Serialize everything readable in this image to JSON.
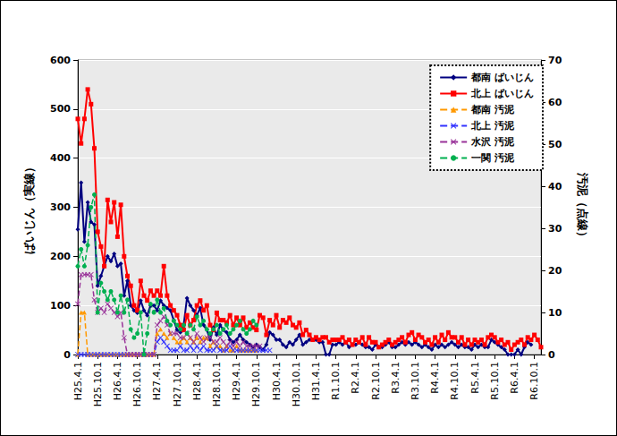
{
  "chart_data": {
    "type": "line",
    "y_label": "ばいじん（実線）",
    "y2_label": "汚泥（点線）",
    "categories": [
      "H25.4.1",
      null,
      null,
      null,
      null,
      null,
      "H25.10.1",
      null,
      null,
      null,
      null,
      null,
      "H26.4.1",
      null,
      null,
      null,
      null,
      null,
      "H26.10.1",
      null,
      null,
      null,
      null,
      null,
      "H27.4.1",
      null,
      null,
      null,
      null,
      null,
      "H27.10.1",
      null,
      null,
      null,
      null,
      null,
      "H28.4.1",
      null,
      null,
      null,
      null,
      null,
      "H28.10.1",
      null,
      null,
      null,
      null,
      null,
      "H29.4.1",
      null,
      null,
      null,
      null,
      null,
      "H29.10.1",
      null,
      null,
      null,
      null,
      null,
      "H30.4.1",
      null,
      null,
      null,
      null,
      null,
      "H30.10.1",
      null,
      null,
      null,
      null,
      null,
      "H31.4.1",
      null,
      null,
      null,
      null,
      null,
      "R1.10.1",
      null,
      null,
      null,
      null,
      null,
      "R2.4.1",
      null,
      null,
      null,
      null,
      null,
      "R2.10.1",
      null,
      null,
      null,
      null,
      null,
      "R3.4.1",
      null,
      null,
      null,
      null,
      null,
      "R3.10.1",
      null,
      null,
      null,
      null,
      null,
      "R4.4.1",
      null,
      null,
      null,
      null,
      null,
      "R4.10.1",
      null,
      null,
      null,
      null,
      null,
      "R5.4.1",
      null,
      null,
      null,
      null,
      null,
      "R5.10.1",
      null,
      null,
      null,
      null,
      null,
      "R6.4.1",
      null,
      null,
      null,
      null,
      null,
      "R6.10.1",
      null,
      null
    ],
    "ylim": [
      0,
      600
    ],
    "yticks": [
      0,
      100,
      200,
      300,
      400,
      500,
      600
    ],
    "y2lim": [
      0,
      70
    ],
    "y2ticks": [
      0,
      10,
      20,
      30,
      40,
      50,
      60,
      70
    ],
    "grid": true,
    "legend": "upper right",
    "series": [
      {
        "name": "都南 ばいじん",
        "color": "#000080",
        "marker": "diamond",
        "line_style": "solid",
        "axis": "y",
        "values": [
          255,
          350,
          230,
          310,
          270,
          265,
          140,
          160,
          180,
          200,
          190,
          205,
          180,
          185,
          120,
          150,
          100,
          90,
          85,
          110,
          90,
          80,
          100,
          100,
          90,
          110,
          100,
          95,
          90,
          70,
          50,
          45,
          60,
          115,
          100,
          90,
          80,
          95,
          60,
          50,
          30,
          55,
          40,
          60,
          50,
          45,
          30,
          25,
          30,
          40,
          30,
          25,
          20,
          15,
          20,
          15,
          10,
          20,
          45,
          40,
          30,
          30,
          20,
          15,
          25,
          20,
          30,
          40,
          20,
          25,
          30,
          30,
          30,
          25,
          25,
          0,
          0,
          20,
          20,
          25,
          20,
          25,
          15,
          20,
          20,
          25,
          20,
          15,
          15,
          10,
          20,
          15,
          15,
          20,
          25,
          15,
          15,
          20,
          25,
          20,
          25,
          20,
          25,
          20,
          15,
          20,
          15,
          10,
          20,
          15,
          20,
          15,
          20,
          25,
          20,
          15,
          20,
          15,
          15,
          10,
          20,
          15,
          20,
          15,
          15,
          30,
          25,
          20,
          15,
          10,
          0,
          0,
          0,
          10,
          0,
          15,
          25,
          20,
          null,
          null,
          null
        ]
      },
      {
        "name": "北上 ばいじん",
        "color": "#ff0000",
        "marker": "square",
        "line_style": "solid",
        "axis": "y",
        "values": [
          480,
          430,
          480,
          540,
          510,
          420,
          250,
          220,
          180,
          315,
          270,
          310,
          240,
          305,
          200,
          160,
          140,
          100,
          90,
          150,
          120,
          110,
          130,
          120,
          130,
          120,
          180,
          120,
          100,
          90,
          80,
          60,
          50,
          80,
          60,
          70,
          100,
          110,
          90,
          100,
          60,
          50,
          85,
          70,
          70,
          65,
          80,
          60,
          75,
          60,
          75,
          55,
          65,
          55,
          50,
          80,
          75,
          40,
          70,
          60,
          80,
          55,
          70,
          65,
          75,
          60,
          55,
          65,
          40,
          50,
          40,
          30,
          35,
          30,
          35,
          35,
          25,
          30,
          30,
          30,
          35,
          25,
          30,
          20,
          30,
          25,
          35,
          20,
          35,
          25,
          25,
          15,
          20,
          25,
          30,
          20,
          25,
          30,
          35,
          25,
          40,
          45,
          30,
          40,
          35,
          25,
          30,
          20,
          35,
          25,
          40,
          30,
          45,
          35,
          35,
          25,
          35,
          20,
          30,
          20,
          30,
          25,
          30,
          20,
          35,
          40,
          35,
          25,
          30,
          20,
          25,
          10,
          20,
          25,
          30,
          20,
          35,
          30,
          40,
          30,
          15
        ]
      },
      {
        "name": "都南 汚泥",
        "color": "#ff9900",
        "marker": "triangle",
        "line_style": "dashed",
        "axis": "y2",
        "values": [
          0,
          10,
          10,
          0,
          0,
          0,
          0,
          0,
          0,
          0,
          0,
          0,
          0,
          0,
          0,
          0,
          0,
          0,
          0,
          0,
          0,
          0,
          0,
          0,
          5,
          6,
          5,
          4,
          5,
          4,
          3,
          3,
          4,
          3,
          4,
          3,
          4,
          3,
          4,
          4,
          2,
          3,
          2,
          2,
          1,
          2,
          1,
          1,
          2,
          1,
          1,
          1,
          1,
          1,
          1,
          null,
          null,
          null,
          null,
          null,
          null,
          null,
          null,
          null,
          null,
          null,
          null,
          null,
          null,
          null,
          null,
          null,
          null,
          null,
          null,
          null,
          null,
          null,
          null,
          null,
          null,
          null,
          null,
          null,
          null,
          null,
          null,
          null,
          null,
          null,
          null,
          null,
          null,
          null,
          null,
          null,
          null,
          null,
          null,
          null,
          null,
          null,
          null,
          null,
          null,
          null,
          null,
          null,
          null,
          null,
          null,
          null,
          null,
          null,
          null,
          null,
          null,
          null,
          null,
          null,
          null,
          null,
          null,
          null,
          null,
          null,
          null,
          null,
          null,
          null,
          null,
          null,
          null,
          null,
          null,
          null,
          null,
          null,
          null,
          null,
          null
        ]
      },
      {
        "name": "北上 汚泥",
        "color": "#3333ff",
        "marker": "x",
        "line_style": "dashed",
        "axis": "y2",
        "values": [
          0,
          0,
          0,
          0,
          0,
          0,
          0,
          0,
          0,
          0,
          0,
          0,
          0,
          0,
          0,
          0,
          0,
          0,
          0,
          0,
          0,
          0,
          0,
          0,
          3,
          4,
          3,
          2,
          1,
          1,
          1,
          2,
          1,
          1,
          2,
          1,
          2,
          1,
          2,
          1,
          1,
          1,
          2,
          1,
          1,
          1,
          2,
          1,
          1,
          1,
          1,
          1,
          1,
          1,
          1,
          1,
          1,
          1,
          1,
          null,
          null,
          null,
          null,
          null,
          null,
          null,
          null,
          null,
          null,
          null,
          null,
          null,
          null,
          null,
          null,
          null,
          null,
          null,
          null,
          null,
          null,
          null,
          null,
          null,
          null,
          null,
          null,
          null,
          null,
          null,
          null,
          null,
          null,
          null,
          null,
          null,
          null,
          null,
          null,
          null,
          null,
          null,
          null,
          null,
          null,
          null,
          null,
          null,
          null,
          null,
          null,
          null,
          null,
          null,
          null,
          null,
          null,
          null,
          null,
          null,
          null,
          null,
          null,
          null,
          null,
          null,
          null,
          null,
          null,
          null,
          null,
          null,
          null,
          null,
          null,
          null,
          null,
          null,
          null,
          null,
          null
        ]
      },
      {
        "name": "水沢 汚泥",
        "color": "#993399",
        "marker": "x",
        "line_style": "dashed",
        "axis": "y2",
        "values": [
          12,
          19,
          19,
          19,
          19,
          13,
          10,
          11,
          10,
          12,
          11,
          10,
          9,
          10,
          4,
          0,
          0,
          0,
          0,
          0,
          0,
          0,
          0,
          0,
          7,
          8,
          9,
          7,
          5,
          5,
          5,
          4,
          4,
          5,
          4,
          3,
          5,
          4,
          3,
          4,
          4,
          3,
          3,
          4,
          3,
          2,
          3,
          2,
          3,
          2,
          3,
          2,
          2,
          2,
          2,
          2,
          null,
          null,
          null,
          null,
          null,
          null,
          null,
          null,
          null,
          null,
          null,
          null,
          null,
          null,
          null,
          null,
          null,
          null,
          null,
          null,
          null,
          null,
          null,
          null,
          null,
          null,
          null,
          null,
          null,
          null,
          null,
          null,
          null,
          null,
          null,
          null,
          null,
          null,
          null,
          null,
          null,
          null,
          null,
          null,
          null,
          null,
          null,
          null,
          null,
          null,
          null,
          null,
          null,
          null,
          null,
          null,
          null,
          null,
          null,
          null,
          null,
          null,
          null,
          null,
          null,
          null,
          null,
          null,
          null,
          null,
          null,
          null,
          null,
          null,
          null,
          null,
          null,
          null,
          null,
          null,
          null,
          null,
          null,
          null,
          null
        ]
      },
      {
        "name": "一関 汚泥",
        "color": "#00b050",
        "marker": "circle",
        "line_style": "dashed",
        "axis": "y2",
        "values": [
          21,
          25,
          21,
          26,
          35,
          38,
          10,
          17,
          15,
          13,
          15,
          13,
          10,
          14,
          10,
          13,
          6,
          4,
          5,
          10,
          0,
          5,
          12,
          10,
          13,
          10,
          11,
          8,
          7,
          8,
          7,
          6,
          7,
          5,
          7,
          6,
          9,
          7,
          8,
          6,
          5,
          6,
          7,
          5,
          6,
          7,
          5,
          6,
          7,
          8,
          6,
          5,
          6,
          8,
          7,
          null,
          null,
          null,
          null,
          null,
          null,
          null,
          null,
          null,
          null,
          null,
          null,
          null,
          null,
          null,
          null,
          null,
          null,
          null,
          null,
          null,
          null,
          null,
          null,
          null,
          null,
          null,
          null,
          null,
          null,
          null,
          null,
          null,
          null,
          null,
          null,
          null,
          null,
          null,
          null,
          null,
          null,
          null,
          null,
          null,
          null,
          null,
          null,
          null,
          null,
          null,
          null,
          null,
          null,
          null,
          null,
          null,
          null,
          null,
          null,
          null,
          null,
          null,
          null,
          null,
          null,
          null,
          null,
          null,
          null,
          null,
          null,
          null,
          null,
          null,
          null,
          null,
          null,
          null,
          null,
          null,
          null,
          null,
          null,
          null,
          null
        ]
      }
    ]
  }
}
